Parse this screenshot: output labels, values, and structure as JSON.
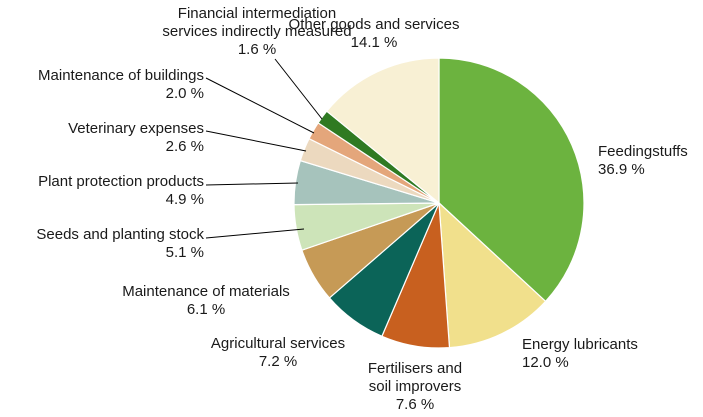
{
  "chart_data": {
    "type": "pie",
    "start_angle_deg": 0,
    "direction": "clockwise",
    "slices": [
      {
        "name": "Feedingstuffs",
        "label_lines": [
          "Feedingstuffs"
        ],
        "value": 36.9,
        "value_label": "36.9 %",
        "color": "#6cb33f"
      },
      {
        "name": "Energy lubricants",
        "label_lines": [
          "Energy lubricants"
        ],
        "value": 12.0,
        "value_label": "12.0 %",
        "color": "#f1e08c"
      },
      {
        "name": "Fertilisers and soil improvers",
        "label_lines": [
          "Fertilisers and",
          "soil improvers"
        ],
        "value": 7.6,
        "value_label": "7.6 %",
        "color": "#c8601f"
      },
      {
        "name": "Agricultural services",
        "label_lines": [
          "Agricultural services"
        ],
        "value": 7.2,
        "value_label": "7.2 %",
        "color": "#0b6458"
      },
      {
        "name": "Maintenance of materials",
        "label_lines": [
          "Maintenance of materials"
        ],
        "value": 6.1,
        "value_label": "6.1 %",
        "color": "#c69a56"
      },
      {
        "name": "Seeds and planting stock",
        "label_lines": [
          "Seeds and planting stock"
        ],
        "value": 5.1,
        "value_label": "5.1 %",
        "color": "#cde4b9"
      },
      {
        "name": "Plant protection products",
        "label_lines": [
          "Plant protection products"
        ],
        "value": 4.9,
        "value_label": "4.9 %",
        "color": "#a6c3bc"
      },
      {
        "name": "Veterinary expenses",
        "label_lines": [
          "Veterinary expenses"
        ],
        "value": 2.6,
        "value_label": "2.6 %",
        "color": "#ecd9bf"
      },
      {
        "name": "Maintenance of buildings",
        "label_lines": [
          "Maintenance of buildings"
        ],
        "value": 2.0,
        "value_label": "2.0 %",
        "color": "#e4a67b"
      },
      {
        "name": "Financial intermediation services indirectly measured",
        "label_lines": [
          "Financial intermediation",
          "services indirectly measured"
        ],
        "value": 1.6,
        "value_label": "1.6 %",
        "color": "#2f7a22"
      },
      {
        "name": "Other goods and services",
        "label_lines": [
          "Other goods and services"
        ],
        "value": 14.1,
        "value_label": "14.1 %",
        "color": "#f8f0d4"
      }
    ]
  }
}
